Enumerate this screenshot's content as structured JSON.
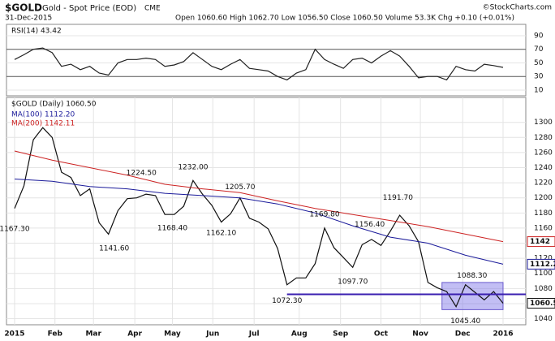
{
  "header": {
    "symbol": "$GOLD",
    "name": "Gold - Spot Price (EOD)",
    "exchange": "CME",
    "date": "31-Dec-2015",
    "quote": "Open 1060.60 High 1062.70 Low 1056.50 Close 1060.50 Volume 53.3K Chg +0.10 (+0.01%)",
    "copyright": "©StockCharts.com"
  },
  "chart_data": [
    {
      "type": "line",
      "legend": "RSI(14) 43.42",
      "xlim": [
        -0.86,
        54.42
      ],
      "ylim": [
        1.6,
        106.7
      ],
      "yticks": [
        90,
        70,
        50,
        30,
        10
      ],
      "grid": true,
      "x": [
        0,
        1,
        2,
        3,
        4,
        5,
        6,
        7,
        8,
        9,
        10,
        11,
        12,
        13,
        14,
        15,
        16,
        17,
        18,
        19,
        20,
        21,
        22,
        23,
        24,
        25,
        26,
        27,
        28,
        29,
        30,
        31,
        32,
        33,
        34,
        35,
        36,
        37,
        38,
        39,
        40,
        41,
        42,
        43,
        44,
        45,
        46,
        47,
        48,
        49,
        50,
        51,
        52
      ],
      "series": [
        {
          "name": "RSI(14)",
          "color": "#222222",
          "values": [
            55,
            62,
            70,
            72,
            65,
            45,
            48,
            40,
            45,
            35,
            32,
            50,
            55,
            55,
            57,
            55,
            45,
            47,
            52,
            65,
            55,
            45,
            40,
            48,
            55,
            42,
            40,
            38,
            30,
            25,
            35,
            40,
            70,
            55,
            48,
            42,
            55,
            57,
            50,
            60,
            68,
            60,
            45,
            28,
            30,
            30,
            25,
            45,
            40,
            38,
            48,
            46,
            43.42
          ]
        }
      ]
    },
    {
      "type": "line",
      "legend": "$GOLD (Daily) 1060.50",
      "xlim": [
        -0.86,
        54.42
      ],
      "ylim": [
        1032,
        1333
      ],
      "yticks": [
        1040,
        1060,
        1080,
        1100,
        1120,
        1140,
        1160,
        1180,
        1200,
        1220,
        1240,
        1260,
        1280,
        1300
      ],
      "grid": true,
      "xticks": [
        {
          "value": 0,
          "label": "2015"
        },
        {
          "value": 4.3,
          "label": "Feb"
        },
        {
          "value": 8.4,
          "label": "Mar"
        },
        {
          "value": 12.8,
          "label": "Apr"
        },
        {
          "value": 16.8,
          "label": "May"
        },
        {
          "value": 21.1,
          "label": "Jun"
        },
        {
          "value": 25.5,
          "label": "Jul"
        },
        {
          "value": 30.3,
          "label": "Aug"
        },
        {
          "value": 34.7,
          "label": "Sep"
        },
        {
          "value": 39,
          "label": "Oct"
        },
        {
          "value": 43.2,
          "label": "Nov"
        },
        {
          "value": 47.7,
          "label": "Dec"
        },
        {
          "value": 52,
          "label": "2016"
        }
      ],
      "x": [
        0,
        1,
        2,
        3,
        4,
        5,
        6,
        7,
        8,
        9,
        10,
        11,
        12,
        13,
        14,
        15,
        16,
        17,
        18,
        19,
        20,
        21,
        22,
        23,
        24,
        25,
        26,
        27,
        28,
        29,
        30,
        31,
        32,
        33,
        34,
        35,
        36,
        37,
        38,
        39,
        40,
        41,
        42,
        43,
        44,
        45,
        46,
        47,
        48,
        49,
        50,
        51,
        52
      ],
      "series": [
        {
          "name": "$GOLD",
          "color": "#111111",
          "tag": "1060.5",
          "values": [
            1186,
            1216,
            1277,
            1293,
            1280,
            1234,
            1227,
            1203,
            1212,
            1167,
            1152,
            1183,
            1199,
            1200,
            1205,
            1203,
            1178,
            1178,
            1189,
            1223,
            1205,
            1190,
            1168,
            1179,
            1200,
            1173,
            1168,
            1159,
            1133,
            1085,
            1094,
            1094,
            1113,
            1160,
            1134,
            1121,
            1108,
            1138,
            1145,
            1137,
            1156,
            1177,
            1163,
            1142,
            1088,
            1081,
            1076,
            1056,
            1085,
            1075,
            1065,
            1076,
            1060.5
          ]
        },
        {
          "name": "MA(100) 1112.20",
          "color": "#1a1a9a",
          "tag": "1112.2",
          "x": [
            0,
            4,
            8,
            12,
            16,
            20,
            24,
            28,
            32,
            36,
            40,
            44,
            48,
            52
          ],
          "values": [
            1225,
            1222,
            1215,
            1212,
            1206,
            1203,
            1200,
            1192,
            1180,
            1163,
            1148,
            1140,
            1124,
            1112.2
          ]
        },
        {
          "name": "MA(200) 1142.11",
          "color": "#cc2222",
          "tag": "1142",
          "x": [
            0,
            4,
            8,
            12,
            16,
            20,
            24,
            28,
            32,
            36,
            40,
            44,
            48,
            52
          ],
          "values": [
            1262,
            1250,
            1240,
            1230,
            1218,
            1212,
            1207,
            1196,
            1186,
            1178,
            1170,
            1162,
            1152,
            1142.11
          ]
        }
      ],
      "annotations": [
        {
          "x": 0,
          "value": 1167.3,
          "label": "1167.30"
        },
        {
          "x": 10.6,
          "value": 1141.6,
          "label": "1141.60"
        },
        {
          "x": 13.5,
          "value": 1224.5,
          "label": "1224.50"
        },
        {
          "x": 16.8,
          "value": 1168.4,
          "label": "1168.40"
        },
        {
          "x": 19,
          "value": 1232,
          "label": "1232.00"
        },
        {
          "x": 22,
          "value": 1162.1,
          "label": "1162.10"
        },
        {
          "x": 24,
          "value": 1205.7,
          "label": "1205.70"
        },
        {
          "x": 29,
          "value": 1072.3,
          "label": "1072.30"
        },
        {
          "x": 33,
          "value": 1169.8,
          "label": "1169.80"
        },
        {
          "x": 36,
          "value": 1097.7,
          "label": "1097.70"
        },
        {
          "x": 37.8,
          "value": 1156.4,
          "label": "1156.40"
        },
        {
          "x": 40.8,
          "value": 1191.7,
          "label": "1191.70"
        },
        {
          "x": 48.7,
          "value": 1088.3,
          "label": "1088.30"
        },
        {
          "x": 48,
          "value": 1045.4,
          "label": "1045.40"
        }
      ],
      "highlight": {
        "x": [
          45.5,
          52
        ],
        "y": [
          1052,
          1088
        ]
      }
    }
  ]
}
